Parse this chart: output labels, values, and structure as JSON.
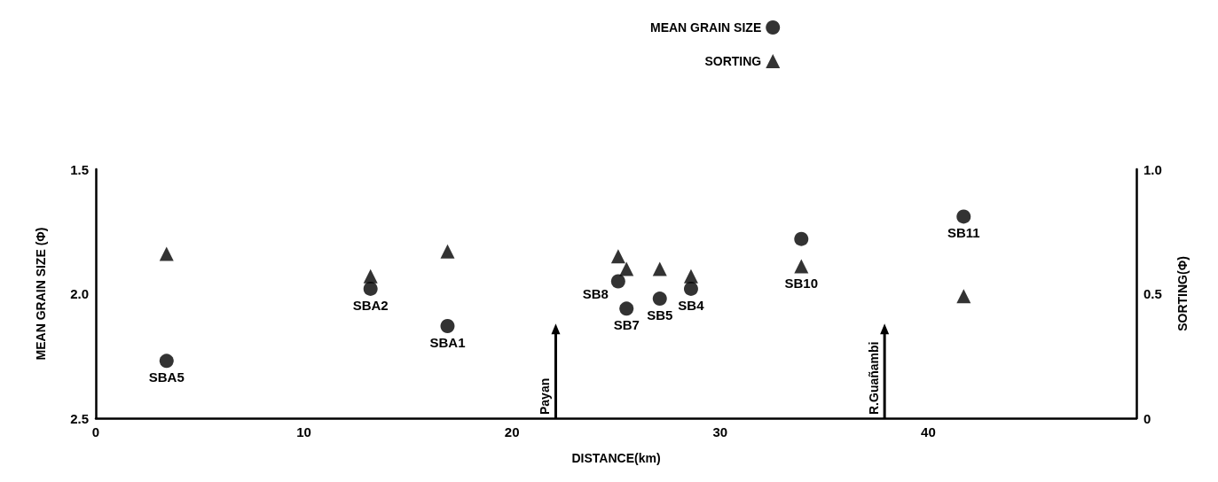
{
  "chart_data": {
    "type": "scatter",
    "xlabel": "DISTANCE(km)",
    "ylabel": "MEAN GRAIN SIZE (Φ)",
    "y2label": "SORTING(Φ)",
    "x": [
      3.4,
      13.2,
      16.9,
      25.1,
      25.5,
      27.1,
      28.6,
      33.9,
      41.7
    ],
    "series": [
      {
        "name": "MEAN GRAIN SIZE",
        "color": "#000000",
        "marker": "circle",
        "values": [
          2.27,
          1.98,
          2.13,
          1.95,
          2.06,
          2.02,
          1.98,
          1.78,
          1.69
        ]
      },
      {
        "name": "SORTING",
        "color": "#000000",
        "marker": "triangle",
        "axis": "y2",
        "values": [
          0.66,
          0.57,
          0.67,
          0.65,
          0.6,
          0.6,
          0.57,
          0.61,
          0.49
        ]
      }
    ],
    "xlim": [
      0,
      50
    ],
    "xticks": [
      0,
      10,
      20,
      30,
      40
    ],
    "ylim": [
      2.5,
      1.5
    ],
    "yticks": [
      1.5,
      {
        "value": 2,
        "label": "2.0"
      },
      2.5
    ],
    "y2lim": [
      0,
      1
    ],
    "y2ticks": [
      0,
      0.5,
      {
        "value": 1,
        "label": "1.0"
      }
    ],
    "annotations": [
      {
        "text": "SBA5",
        "x": 3.4,
        "y": 2.27
      },
      {
        "text": "SBA2",
        "x": 13.2,
        "y": 1.98
      },
      {
        "text": "SBA1",
        "x": 16.9,
        "y": 2.13
      },
      {
        "text": "SB8",
        "x": 25.1,
        "y": 1.95
      },
      {
        "text": "SB7",
        "x": 25.5,
        "y": 2.06
      },
      {
        "text": "SB5",
        "x": 27.1,
        "y": 2.02
      },
      {
        "text": "SB4",
        "x": 28.6,
        "y": 1.98
      },
      {
        "text": "SB10",
        "x": 33.9,
        "y": 1.78
      },
      {
        "text": "SB11",
        "x": 41.7,
        "y": 1.69
      }
    ],
    "ref_lines": [
      {
        "axis": "x",
        "value": 22.1,
        "label": "Payan"
      },
      {
        "axis": "x",
        "value": 37.9,
        "label": "R.Guañambi"
      }
    ],
    "grid": false,
    "legend": "top"
  }
}
